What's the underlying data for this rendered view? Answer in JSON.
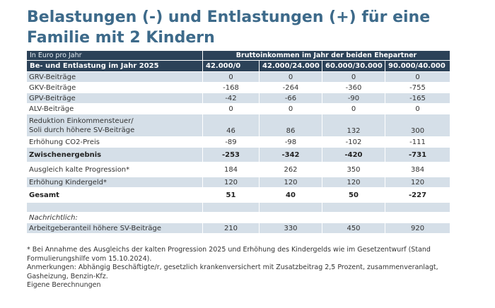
{
  "title": "Belastungen (-) und Entlastungen (+) für eine Familie mit 2 Kindern",
  "table": {
    "unit_label": "In Euro pro Jahr",
    "group_header": "Bruttoinkommen im Jahr der beiden Ehepartner",
    "row_header": "Be- und Entlastung im Jahr 2025",
    "columns": [
      "42.000/0",
      "42.000/24.000",
      "60.000/30.000",
      "90.000/40.000"
    ],
    "rows": [
      {
        "label": "GRV-Beiträge",
        "values": [
          "0",
          "0",
          "0",
          "0"
        ]
      },
      {
        "label": "GKV-Beiträge",
        "values": [
          "-168",
          "-264",
          "-360",
          "-755"
        ]
      },
      {
        "label": "GPV-Beiträge",
        "values": [
          "-42",
          "-66",
          "-90",
          "-165"
        ]
      },
      {
        "label": "ALV-Beiträge",
        "values": [
          "0",
          "0",
          "0",
          "0"
        ]
      },
      {
        "label_line1": "Reduktion Einkommensteuer/",
        "label_line2": "Soli durch höhere SV-Beiträge",
        "values": [
          "46",
          "86",
          "132",
          "300"
        ]
      },
      {
        "label": "Erhöhung CO2-Preis",
        "values": [
          "-89",
          "-98",
          "-102",
          "-111"
        ]
      },
      {
        "label": "Zwischenergebnis",
        "values": [
          "-253",
          "-342",
          "-420",
          "-731"
        ]
      },
      {
        "label": "Ausgleich kalte Progression*",
        "values": [
          "184",
          "262",
          "350",
          "384"
        ]
      },
      {
        "label": "Erhöhung Kindergeld*",
        "values": [
          "120",
          "120",
          "120",
          "120"
        ]
      },
      {
        "label": "Gesamt",
        "values": [
          "51",
          "40",
          "50",
          "-227"
        ]
      },
      {
        "label": "Nachrichtlich:"
      },
      {
        "label": "Arbeitgeberanteil höhere SV-Beiträge",
        "values": [
          "210",
          "330",
          "450",
          "920"
        ]
      }
    ]
  },
  "footer": {
    "note1": "* Bei Annahme des Ausgleichs der kalten Progression 2025 und Erhöhung des Kindergelds wie im Gesetzentwurf (Stand Formulierungshilfe vom 15.10.2024).",
    "note2": "Anmerkungen: Abhängig Beschäftigte/r, gesetzlich krankenversichert mit Zusatzbeitrag 2,5 Prozent, zusammenveranlagt, Gasheizung, Benzin-Kfz.",
    "note3": "Eigene Berechnungen"
  }
}
